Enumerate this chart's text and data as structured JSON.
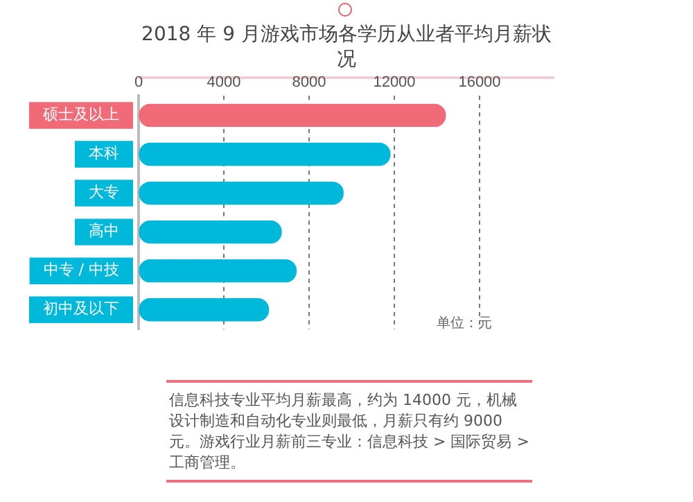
{
  "chart_data": {
    "type": "bar",
    "orientation": "horizontal",
    "title": "2018 年 9 月游戏市场各学历从业者平均月薪状况",
    "categories": [
      "硕士及以上",
      "本科",
      "大专",
      "高中",
      "中专 / 中技",
      "初中及以下"
    ],
    "values": [
      14400,
      11800,
      9600,
      6700,
      7400,
      6100
    ],
    "colors": [
      "#f06a78",
      "#00b8d9",
      "#00b8d9",
      "#00b8d9",
      "#00b8d9",
      "#00b8d9"
    ],
    "xlim": [
      0,
      16000
    ],
    "xticks": [
      0,
      4000,
      8000,
      12000,
      16000
    ],
    "grid": "x",
    "annotations": [
      "单位：元",
      "信息科技专业平均月薪最高，约为 14000 元，机械设计制造和自动化专业则最低，月薪只有约 9000 元。游戏行业月薪前三专业：信息科技 > 国际贸易 > 工商管理。"
    ]
  }
}
